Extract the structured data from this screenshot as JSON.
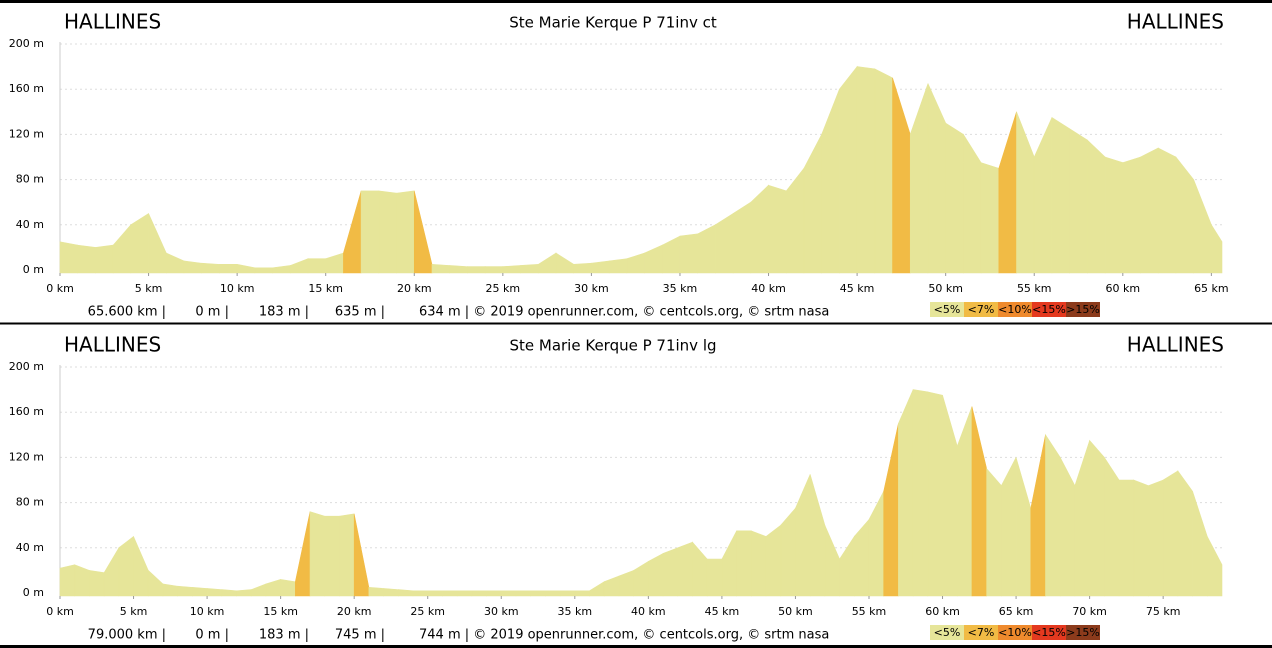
{
  "chart_data": [
    {
      "type": "area",
      "title": "Ste Marie Kerque P 71inv ct",
      "start_label": "HALLINES",
      "end_label": "HALLINES",
      "x": [
        0,
        1,
        2,
        3,
        4,
        5,
        6,
        7,
        8,
        9,
        10,
        11,
        12,
        13,
        14,
        15,
        16,
        17,
        18,
        19,
        20,
        21,
        22,
        23,
        24,
        25,
        26,
        27,
        28,
        29,
        30,
        31,
        32,
        33,
        34,
        35,
        36,
        37,
        38,
        39,
        40,
        41,
        42,
        43,
        44,
        45,
        46,
        47,
        48,
        49,
        50,
        51,
        52,
        53,
        54,
        55,
        56,
        57,
        58,
        59,
        60,
        61,
        62,
        63,
        64,
        65,
        65.6
      ],
      "values": [
        25,
        22,
        20,
        22,
        40,
        50,
        15,
        8,
        6,
        5,
        5,
        2,
        2,
        4,
        10,
        10,
        15,
        70,
        70,
        68,
        70,
        5,
        4,
        3,
        3,
        3,
        4,
        5,
        15,
        5,
        6,
        8,
        10,
        15,
        22,
        30,
        32,
        40,
        50,
        60,
        75,
        70,
        90,
        120,
        160,
        180,
        178,
        170,
        120,
        165,
        130,
        120,
        95,
        90,
        140,
        100,
        135,
        125,
        115,
        100,
        95,
        100,
        108,
        100,
        80,
        40,
        25
      ],
      "xlim": [
        0,
        65.6
      ],
      "xticks": [
        {
          "value": 0,
          "label": "0 km"
        },
        {
          "value": 5,
          "label": "5 km"
        },
        {
          "value": 10,
          "label": "10 km"
        },
        {
          "value": 15,
          "label": "15 km"
        },
        {
          "value": 20,
          "label": "20 km"
        },
        {
          "value": 25,
          "label": "25 km"
        },
        {
          "value": 30,
          "label": "30 km"
        },
        {
          "value": 35,
          "label": "35 km"
        },
        {
          "value": 40,
          "label": "40 km"
        },
        {
          "value": 45,
          "label": "45 km"
        },
        {
          "value": 50,
          "label": "50 km"
        },
        {
          "value": 55,
          "label": "55 km"
        },
        {
          "value": 60,
          "label": "60 km"
        },
        {
          "value": 65,
          "label": "65 km"
        }
      ],
      "ylim": [
        0,
        200
      ],
      "yticks": [
        {
          "value": 0,
          "label": "0 m"
        },
        {
          "value": 40,
          "label": "40 m"
        },
        {
          "value": 80,
          "label": "80 m"
        },
        {
          "value": 120,
          "label": "120 m"
        },
        {
          "value": 160,
          "label": "160 m"
        },
        {
          "value": 200,
          "label": "200 m"
        }
      ],
      "grid": true,
      "footer": [
        "65.600 km |",
        "0 m |",
        "183 m |",
        "635 m |",
        "634 m | © 2019 openrunner.com, © centcols.org, © srtm nasa"
      ],
      "legend": [
        {
          "label": "<5%",
          "value": 5,
          "color": "#e6e599"
        },
        {
          "label": "<7%",
          "value": 7,
          "color": "#f1bb45"
        },
        {
          "label": "<10%",
          "value": 10,
          "color": "#ef8a2d"
        },
        {
          "label": "<15%",
          "value": 15,
          "color": "#e4391f"
        },
        {
          "label": ">15%",
          "value": 15,
          "color": "#8c3b1c"
        }
      ]
    },
    {
      "type": "area",
      "title": "Ste Marie Kerque P 71inv lg",
      "start_label": "HALLINES",
      "end_label": "HALLINES",
      "x": [
        0,
        1,
        2,
        3,
        4,
        5,
        6,
        7,
        8,
        9,
        10,
        11,
        12,
        13,
        14,
        15,
        16,
        17,
        18,
        19,
        20,
        21,
        22,
        23,
        24,
        25,
        26,
        27,
        28,
        29,
        30,
        31,
        32,
        33,
        34,
        35,
        36,
        37,
        38,
        39,
        40,
        41,
        42,
        43,
        44,
        45,
        46,
        47,
        48,
        49,
        50,
        51,
        52,
        53,
        54,
        55,
        56,
        57,
        58,
        59,
        60,
        61,
        62,
        63,
        64,
        65,
        66,
        67,
        68,
        69,
        70,
        71,
        72,
        73,
        74,
        75,
        76,
        77,
        78,
        79
      ],
      "values": [
        22,
        25,
        20,
        18,
        40,
        50,
        20,
        8,
        6,
        5,
        4,
        3,
        2,
        3,
        8,
        12,
        10,
        72,
        68,
        68,
        70,
        5,
        4,
        3,
        2,
        2,
        2,
        2,
        2,
        2,
        2,
        2,
        2,
        2,
        2,
        2,
        2,
        10,
        15,
        20,
        28,
        35,
        40,
        45,
        30,
        30,
        55,
        55,
        50,
        60,
        75,
        105,
        60,
        30,
        50,
        65,
        90,
        150,
        180,
        178,
        175,
        130,
        165,
        110,
        95,
        120,
        75,
        140,
        120,
        95,
        135,
        120,
        100,
        100,
        95,
        100,
        108,
        90,
        50,
        25
      ],
      "xlim": [
        0,
        79
      ],
      "xticks": [
        {
          "value": 0,
          "label": "0 km"
        },
        {
          "value": 5,
          "label": "5 km"
        },
        {
          "value": 10,
          "label": "10 km"
        },
        {
          "value": 15,
          "label": "15 km"
        },
        {
          "value": 20,
          "label": "20 km"
        },
        {
          "value": 25,
          "label": "25 km"
        },
        {
          "value": 30,
          "label": "30 km"
        },
        {
          "value": 35,
          "label": "35 km"
        },
        {
          "value": 40,
          "label": "40 km"
        },
        {
          "value": 45,
          "label": "45 km"
        },
        {
          "value": 50,
          "label": "50 km"
        },
        {
          "value": 55,
          "label": "55 km"
        },
        {
          "value": 60,
          "label": "60 km"
        },
        {
          "value": 65,
          "label": "65 km"
        },
        {
          "value": 70,
          "label": "70 km"
        },
        {
          "value": 75,
          "label": "75 km"
        }
      ],
      "ylim": [
        0,
        200
      ],
      "yticks": [
        {
          "value": 0,
          "label": "0 m"
        },
        {
          "value": 40,
          "label": "40 m"
        },
        {
          "value": 80,
          "label": "80 m"
        },
        {
          "value": 120,
          "label": "120 m"
        },
        {
          "value": 160,
          "label": "160 m"
        },
        {
          "value": 200,
          "label": "200 m"
        }
      ],
      "grid": true,
      "footer": [
        "79.000 km |",
        "0 m |",
        "183 m |",
        "745 m |",
        "744 m | © 2019 openrunner.com, © centcols.org, © srtm nasa"
      ],
      "legend": [
        {
          "label": "<5%",
          "value": 5,
          "color": "#e6e599"
        },
        {
          "label": "<7%",
          "value": 7,
          "color": "#f1bb45"
        },
        {
          "label": "<10%",
          "value": 10,
          "color": "#ef8a2d"
        },
        {
          "label": "<15%",
          "value": 15,
          "color": "#e4391f"
        },
        {
          "label": ">15%",
          "value": 15,
          "color": "#8c3b1c"
        }
      ]
    }
  ]
}
